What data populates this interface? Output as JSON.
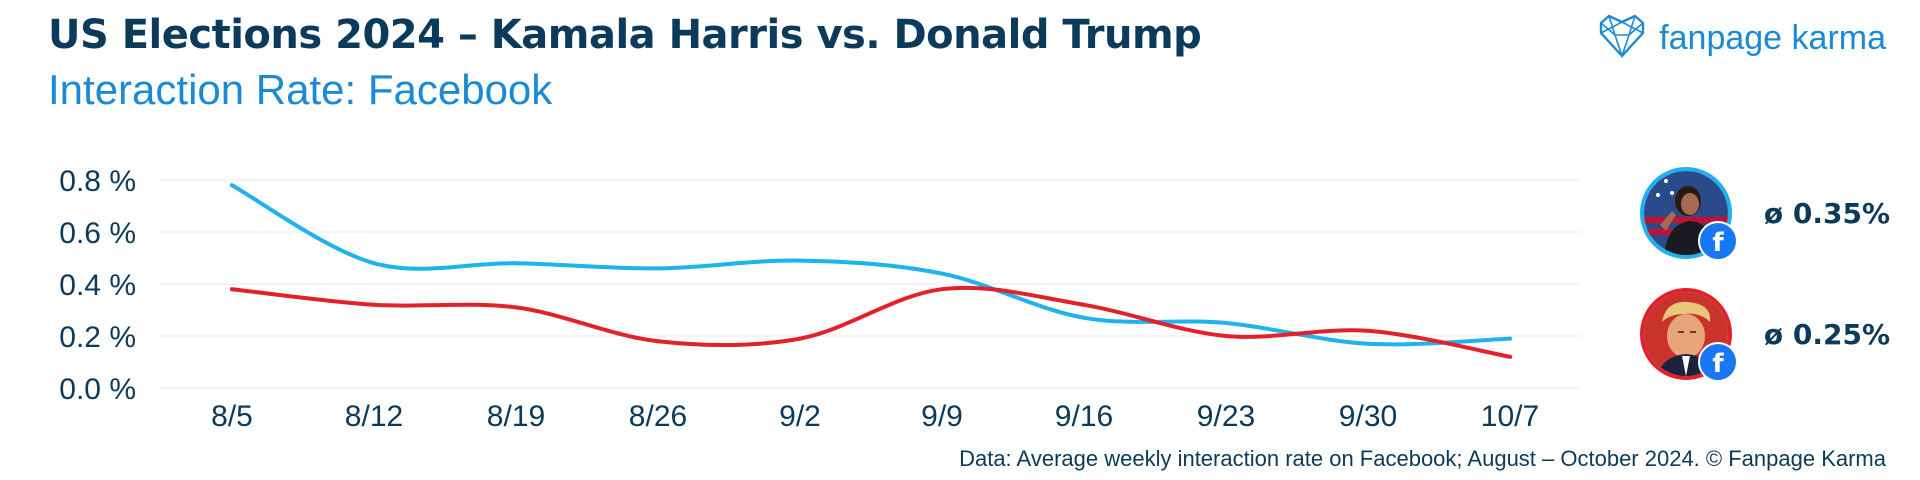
{
  "header": {
    "title": "US Elections 2024 – Kamala Harris vs. Donald Trump",
    "subtitle": "Interaction Rate: Facebook"
  },
  "brand": {
    "name": "fanpage karma",
    "icon": "heart-network-icon"
  },
  "footer": {
    "text": "Data: Average weekly interaction rate on Facebook; August – October 2024. © Fanpage Karma"
  },
  "averages": [
    {
      "name": "Kamala Harris",
      "value_label": "ø 0.35%",
      "color": "#1fb2ec",
      "badge_icon": "facebook-icon",
      "badge_text": "f"
    },
    {
      "name": "Donald Trump",
      "value_label": "ø 0.25%",
      "color": "#e3212b",
      "badge_icon": "facebook-icon",
      "badge_text": "f"
    }
  ],
  "chart_data": {
    "type": "line",
    "title": "Interaction Rate: Facebook",
    "categories": [
      "8/5",
      "8/12",
      "8/19",
      "8/26",
      "9/2",
      "9/9",
      "9/16",
      "9/23",
      "9/30",
      "10/7"
    ],
    "ylim": [
      0,
      0.8
    ],
    "yticks": [
      0.0,
      0.2,
      0.4,
      0.6,
      0.8
    ],
    "ytick_labels": [
      "0.0 %",
      "0.2 %",
      "0.4 %",
      "0.6 %",
      "0.8 %"
    ],
    "grid": true,
    "series": [
      {
        "name": "Kamala Harris",
        "color": "#1fb2ec",
        "values": [
          0.78,
          0.48,
          0.48,
          0.46,
          0.49,
          0.44,
          0.27,
          0.25,
          0.17,
          0.19
        ]
      },
      {
        "name": "Donald Trump",
        "color": "#e3212b",
        "values": [
          0.38,
          0.32,
          0.31,
          0.18,
          0.19,
          0.38,
          0.32,
          0.2,
          0.22,
          0.12
        ]
      }
    ]
  }
}
